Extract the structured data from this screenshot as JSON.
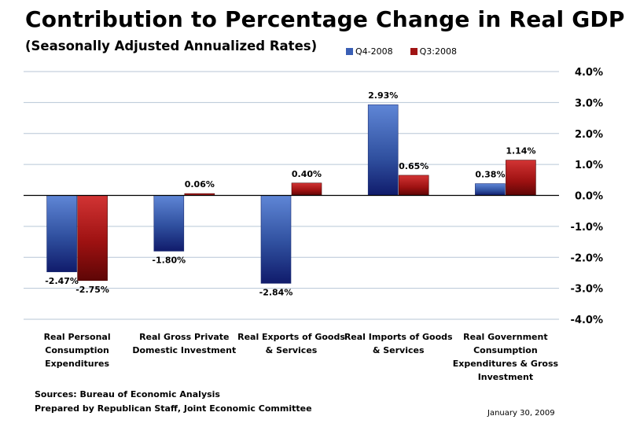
{
  "header": {
    "title": "Contribution to Percentage Change in Real GDP",
    "subtitle": "(Seasonally Adjusted Annualized Rates)"
  },
  "footer": {
    "source_line": "Sources: Bureau of Economic Analysis",
    "prepared_line": "Prepared by Republican Staff, Joint Economic Committee",
    "date": "January 30, 2009"
  },
  "colors": {
    "q4_series": "#3a5fb5",
    "q3_series": "#a01414",
    "gridline": "#b7c6d6"
  },
  "chart_data": {
    "type": "bar",
    "title": "Contribution to Percentage Change in Real GDP",
    "subtitle": "(Seasonally Adjusted Annualized Rates)",
    "categories": [
      "Real Personal Consumption Expenditures",
      "Real Gross Private Domestic Investment",
      "Real Exports of Goods & Services",
      "Real Imports of Goods & Services",
      "Real Government Consumption Expenditures & Gross Investment"
    ],
    "category_labels": [
      [
        "Real Personal",
        "Consumption",
        "Expenditures"
      ],
      [
        "Real Gross Private",
        "Domestic Investment"
      ],
      [
        "Real Exports of Goods",
        "& Services"
      ],
      [
        "Real Imports of Goods",
        "& Services"
      ],
      [
        "Real Government",
        "Consumption",
        "Expenditures & Gross",
        "Investment"
      ]
    ],
    "series": [
      {
        "name": "Q4-2008",
        "values": [
          -2.47,
          -1.8,
          -2.84,
          2.93,
          0.38
        ],
        "labels": [
          "-2.47%",
          "-1.80%",
          "-2.84%",
          "2.93%",
          "0.38%"
        ]
      },
      {
        "name": "Q3:2008",
        "values": [
          -2.75,
          0.06,
          0.4,
          0.65,
          1.14
        ],
        "labels": [
          "-2.75%",
          "0.06%",
          "0.40%",
          "0.65%",
          "1.14%"
        ]
      }
    ],
    "ylim": [
      -4.0,
      4.0
    ],
    "yticks": [
      "4.0%",
      "3.0%",
      "2.0%",
      "1.0%",
      "0.0%",
      "-1.0%",
      "-2.0%",
      "-3.0%",
      "-4.0%"
    ],
    "ytick_values": [
      4,
      3,
      2,
      1,
      0,
      -1,
      -2,
      -3,
      -4
    ],
    "xlabel": "",
    "ylabel": "",
    "grid": true,
    "legend": "top-right"
  }
}
